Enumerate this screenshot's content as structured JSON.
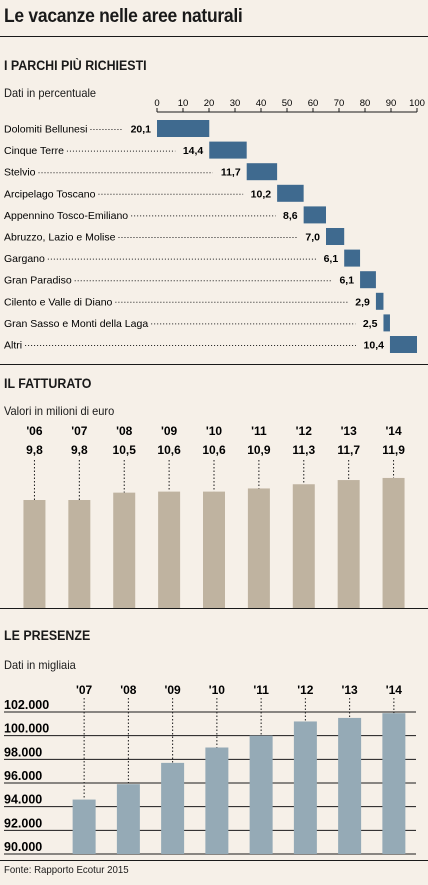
{
  "title": "Le vacanze nelle aree naturali",
  "sections": {
    "parks": {
      "title": "I PARCHI PIÙ RICHIESTI",
      "subtitle": "Dati in percentuale"
    },
    "revenue": {
      "title": "IL FATTURATO",
      "subtitle": "Valori in milioni di euro"
    },
    "presence": {
      "title": "LE PRESENZE",
      "subtitle": "Dati in migliaia"
    }
  },
  "source": "Fonte: Rapporto Ecotur 2015",
  "colors": {
    "background": "#f6f0e8",
    "parks_bar": "#3f6a8f",
    "revenue_bar": "#bfb3a0",
    "presence_bar": "#95aab6"
  },
  "chart_data": [
    {
      "type": "bar",
      "orientation": "horizontal-waterfall",
      "categories": [
        "Dolomiti Bellunesi",
        "Cinque Terre",
        "Stelvio",
        "Arcipelago Toscano",
        "Appennino Tosco-Emiliano",
        "Abruzzo, Lazio e Molise",
        "Gargano",
        "Gran Paradiso",
        "Cilento e Valle di Diano",
        "Gran Sasso e Monti della Laga",
        "Altri"
      ],
      "values": [
        20.1,
        14.4,
        11.7,
        10.2,
        8.6,
        7.0,
        6.1,
        6.1,
        2.9,
        2.5,
        10.4
      ],
      "value_labels": [
        "20,1",
        "14,4",
        "11,7",
        "10,2",
        "8,6",
        "7,0",
        "6,1",
        "6,1",
        "2,9",
        "2,5",
        "10,4"
      ],
      "xlim": [
        0,
        100
      ],
      "xticks": [
        "0",
        "10",
        "20",
        "30",
        "40",
        "50",
        "60",
        "70",
        "80",
        "90",
        "100"
      ],
      "grid": false
    },
    {
      "type": "bar",
      "categories": [
        "'06",
        "'07",
        "'08",
        "'09",
        "'10",
        "'11",
        "'12",
        "'13",
        "'14"
      ],
      "values": [
        9.8,
        9.8,
        10.5,
        10.6,
        10.6,
        10.9,
        11.3,
        11.7,
        11.9
      ],
      "value_labels": [
        "9,8",
        "9,8",
        "10,5",
        "10,6",
        "10,6",
        "10,9",
        "11,3",
        "11,7",
        "11,9"
      ]
    },
    {
      "type": "bar",
      "categories": [
        "'07",
        "'08",
        "'09",
        "'10",
        "'11",
        "'12",
        "'13",
        "'14"
      ],
      "values": [
        94600,
        95900,
        97700,
        99000,
        100000,
        101200,
        101500,
        101900
      ],
      "ylim": [
        90000,
        102000
      ],
      "yticks": [
        "90.000",
        "92.000",
        "94.000",
        "96.000",
        "98.000",
        "100.000",
        "102.000"
      ],
      "grid": true
    }
  ]
}
